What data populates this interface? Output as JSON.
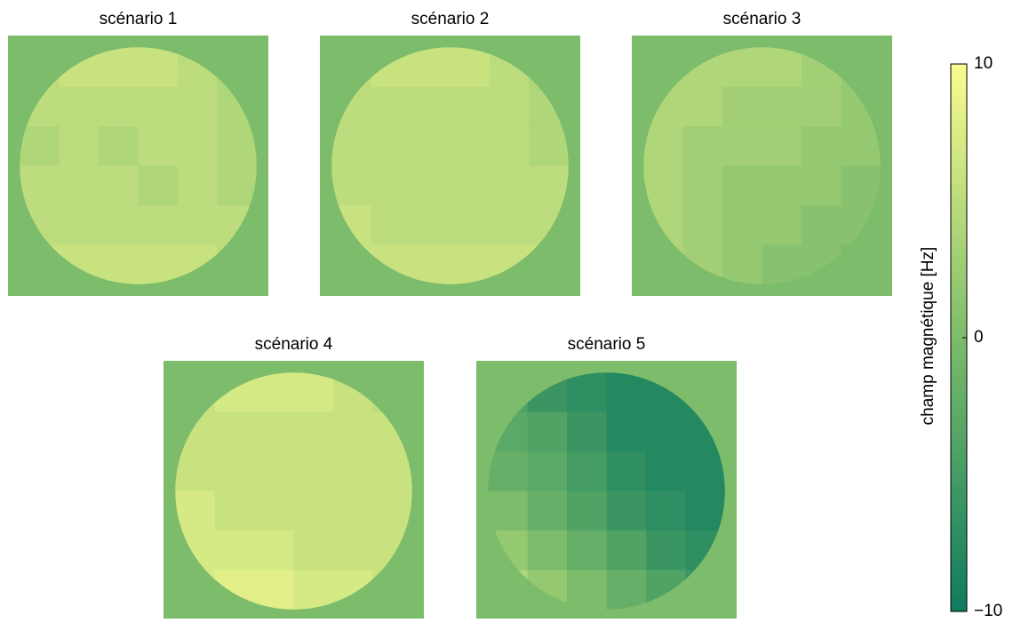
{
  "chart_data": {
    "type": "heatmap",
    "panels": [
      {
        "title": "scénario 1",
        "values": [
          [
            5,
            6,
            6,
            6,
            5,
            4
          ],
          [
            5,
            5,
            5,
            5,
            5,
            4
          ],
          [
            4,
            5,
            4,
            5,
            5,
            4
          ],
          [
            5,
            5,
            5,
            4,
            5,
            4
          ],
          [
            5,
            5,
            5,
            5,
            5,
            5
          ],
          [
            6,
            6,
            6,
            6,
            6,
            5
          ]
        ]
      },
      {
        "title": "scénario 2",
        "values": [
          [
            5,
            6,
            6,
            6,
            5,
            4
          ],
          [
            5,
            5,
            5,
            5,
            5,
            4
          ],
          [
            5,
            5,
            5,
            5,
            5,
            4
          ],
          [
            5,
            5,
            5,
            5,
            5,
            5
          ],
          [
            6,
            5,
            5,
            5,
            5,
            5
          ],
          [
            6,
            6,
            6,
            6,
            6,
            6
          ]
        ]
      },
      {
        "title": "scénario 3",
        "values": [
          [
            4,
            4,
            4,
            4,
            3,
            2
          ],
          [
            4,
            4,
            3,
            3,
            3,
            2
          ],
          [
            4,
            3,
            3,
            3,
            2,
            2
          ],
          [
            4,
            3,
            2,
            2,
            2,
            1
          ],
          [
            4,
            3,
            2,
            2,
            1,
            1
          ],
          [
            4,
            3,
            2,
            1,
            1,
            0
          ]
        ]
      },
      {
        "title": "scénario 4",
        "values": [
          [
            6,
            7,
            7,
            7,
            6,
            5
          ],
          [
            6,
            6,
            6,
            6,
            6,
            6
          ],
          [
            6,
            6,
            6,
            6,
            6,
            6
          ],
          [
            7,
            6,
            6,
            6,
            6,
            6
          ],
          [
            7,
            7,
            7,
            6,
            6,
            6
          ],
          [
            7,
            8,
            8,
            7,
            7,
            6
          ]
        ]
      },
      {
        "title": "scénario 5",
        "values": [
          [
            -4,
            -6,
            -7,
            -8,
            -8,
            -8
          ],
          [
            -3,
            -4,
            -6,
            -8,
            -8,
            -8
          ],
          [
            -2,
            -3,
            -5,
            -7,
            -8,
            -8
          ],
          [
            0,
            -2,
            -4,
            -6,
            -7,
            -8
          ],
          [
            2,
            0,
            -2,
            -4,
            -6,
            -7
          ],
          [
            4,
            2,
            0,
            -2,
            -4,
            -6
          ]
        ]
      }
    ],
    "colorbar": {
      "label": "champ magnétique [Hz]",
      "lim": [
        -10,
        10
      ],
      "ticks": [
        {
          "value": -10,
          "label": "−10"
        },
        0,
        10
      ],
      "colors": [
        "#0e7b5e",
        "#7cbc6a",
        "#fbfc8f"
      ]
    }
  }
}
